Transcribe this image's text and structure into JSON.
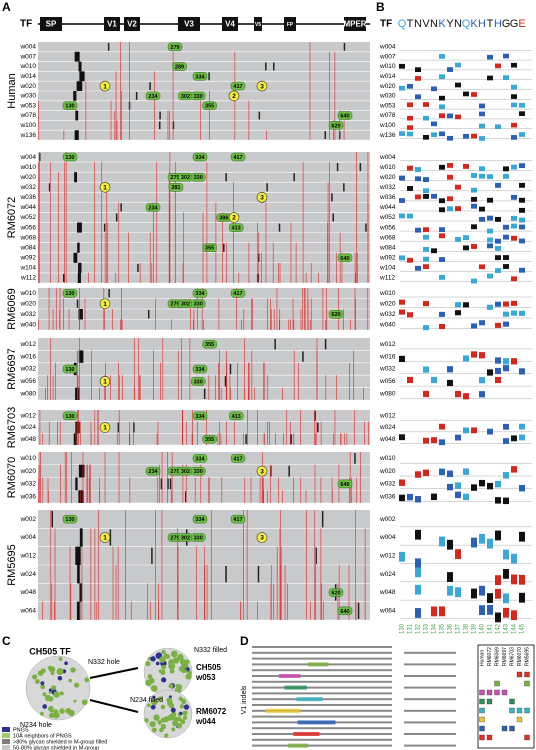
{
  "panel_letters": [
    "A",
    "B",
    "C",
    "D"
  ],
  "panel_a": {
    "tf_label": "TF",
    "regions": [
      "SP",
      "V1",
      "V2",
      "V3",
      "V4",
      "V5",
      "FP",
      "MPER"
    ],
    "groups": [
      {
        "name": "Human",
        "weeks": [
          "w004",
          "w007",
          "w010",
          "w014",
          "w020",
          "w030",
          "w053",
          "w078",
          "w100",
          "w136"
        ],
        "pngs": [
          "279",
          "289",
          "334",
          "417",
          "1",
          "3",
          "234",
          "302",
          "330",
          "2",
          "355",
          "130",
          "640",
          "620"
        ]
      },
      {
        "name": "RM6072",
        "weeks": [
          "w004",
          "w010",
          "w020",
          "w032",
          "w036",
          "w044",
          "w052",
          "w056",
          "w068",
          "w084",
          "w092",
          "w104",
          "w112"
        ],
        "pngs": [
          "130",
          "334",
          "417",
          "279",
          "302",
          "330",
          "281",
          "1",
          "3",
          "234",
          "386",
          "2",
          "413",
          "355",
          "640"
        ]
      },
      {
        "name": "RM6069",
        "weeks": [
          "w010",
          "w020",
          "w032",
          "w040"
        ],
        "pngs": [
          "334",
          "417",
          "130",
          "1",
          "279",
          "302",
          "330",
          "620"
        ]
      },
      {
        "name": "RM6697",
        "weeks": [
          "w012",
          "w016",
          "w032",
          "w056",
          "w080"
        ],
        "pngs": [
          "355",
          "130",
          "334",
          "330",
          "1"
        ]
      },
      {
        "name": "RM6703",
        "weeks": [
          "w012",
          "w024",
          "w048"
        ],
        "pngs": [
          "130",
          "334",
          "413",
          "1",
          "355"
        ]
      },
      {
        "name": "RM6070",
        "weeks": [
          "w010",
          "w020",
          "w032",
          "w036"
        ],
        "pngs": [
          "334",
          "417",
          "3",
          "234",
          "279",
          "302",
          "330",
          "640"
        ]
      },
      {
        "name": "RM5695",
        "weeks": [
          "w002",
          "w004",
          "w012",
          "w024",
          "w048",
          "w064"
        ],
        "pngs": [
          "130",
          "334",
          "417",
          "1",
          "279",
          "302",
          "330",
          "3",
          "620",
          "640"
        ]
      }
    ]
  },
  "panel_b": {
    "tf_label": "TF",
    "sequence": [
      "Q",
      "T",
      "N",
      "V",
      "N",
      "K",
      "Y",
      "N",
      "Q",
      "K",
      "H",
      "T",
      "H",
      "G",
      "G",
      "E"
    ],
    "positions": [
      "130",
      "131",
      "132",
      "133",
      "134",
      "135",
      "136",
      "137",
      "138",
      "139",
      "140",
      "141",
      "142",
      "143",
      "144",
      "145"
    ]
  },
  "panel_c": {
    "tf_title": "CH505 TF",
    "labels": [
      "N332 hole",
      "N234 hole",
      "N332 filled",
      "N234 filled"
    ],
    "variants": [
      [
        "CH505",
        "w053"
      ],
      [
        "RM6072",
        "w044"
      ]
    ],
    "legend": [
      "PNGS",
      "10Å neighbors of PNGS",
      ">80% glycan shielded in M-group filled",
      "50-80% glycan shielded in M-group"
    ]
  },
  "panel_d": {
    "side_label": "V1 indels",
    "columns": [
      "Human",
      "RM6072",
      "RM6069",
      "RM6697",
      "RM6703",
      "RM6070",
      "RM5695"
    ]
  }
}
